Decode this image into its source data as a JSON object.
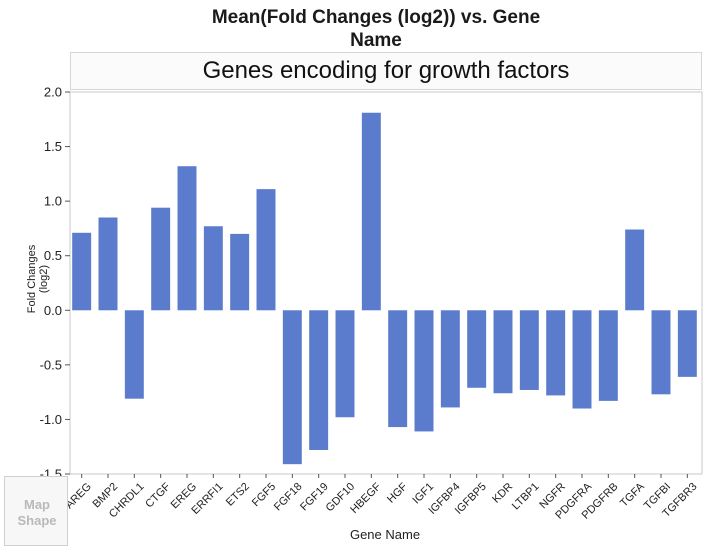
{
  "chart_data": {
    "type": "bar",
    "title": "Mean(Fold Changes (log2)) vs. Gene Name",
    "title_lines": [
      "Mean(Fold Changes (log2)) vs. Gene",
      "Name"
    ],
    "subtitle": "Genes encoding for growth factors",
    "xlabel": "Gene Name",
    "ylabel": "Fold Changes (log2)",
    "ylim": [
      -1.5,
      2.0
    ],
    "yticks": [
      "2.0",
      "1.5",
      "1.0",
      "0.5",
      "0.0",
      "-0.5",
      "-1.0",
      "-1.5"
    ],
    "grid": false,
    "bar_color": "#5b7bcc",
    "categories": [
      "AREG",
      "BMP2",
      "CHRDL1",
      "CTGF",
      "EREG",
      "ERRFI1",
      "ETS2",
      "FGF5",
      "FGF18",
      "FGF19",
      "GDF10",
      "HBEGF",
      "HGF",
      "IGF1",
      "IGFBP4",
      "IGFBP5",
      "KDR",
      "LTBP1",
      "NGFR",
      "PDGFRA",
      "PDGFRB",
      "TGFA",
      "TGFBI",
      "TGFBR3"
    ],
    "values": [
      0.71,
      0.85,
      -0.81,
      0.94,
      1.32,
      0.77,
      0.7,
      1.11,
      -1.41,
      -1.28,
      -0.98,
      1.81,
      -1.07,
      -1.11,
      -0.89,
      -0.71,
      -0.76,
      -0.73,
      -0.78,
      -0.9,
      -0.83,
      0.74,
      -0.77,
      -0.61
    ]
  },
  "panel": {
    "map_shape_label": "Map Shape"
  }
}
